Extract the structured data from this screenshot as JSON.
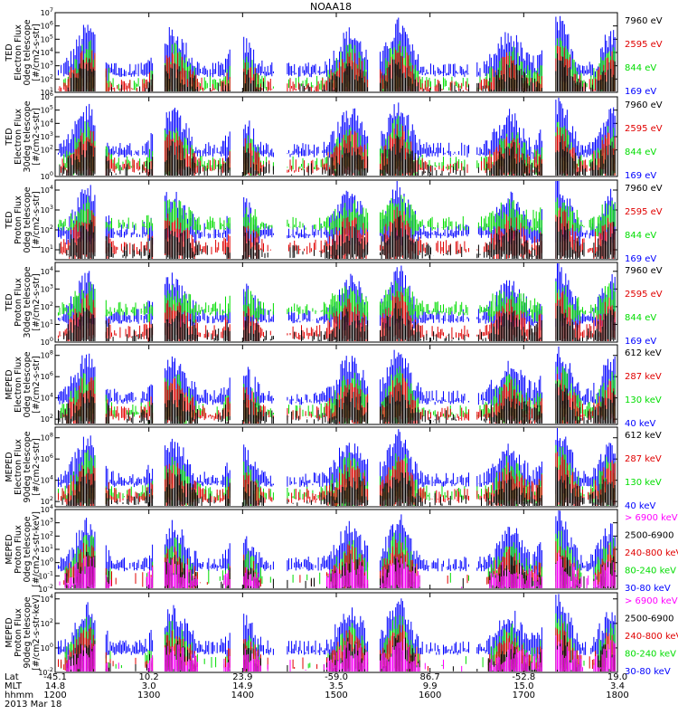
{
  "title": "NOAA18",
  "colors": {
    "black": "#000000",
    "red": "#e00000",
    "green": "#00dd00",
    "blue": "#0000ff",
    "magenta": "#ff00ff"
  },
  "chart_data": {
    "type": "scatter",
    "x_range_hhmm": [
      "1200",
      "1800"
    ],
    "grid": false,
    "panels": [
      {
        "ylabel_lines": [
          "TED",
          "Electron Flux",
          "0deg telescope",
          "[#/cm2-s-str]"
        ],
        "yticks": [
          1,
          2,
          3,
          4,
          5,
          6,
          7
        ],
        "ymin": 1,
        "ymax": 7,
        "baseline": 1.3,
        "legend": [
          {
            "label": "7960 eV",
            "color": "black"
          },
          {
            "label": "2595 eV",
            "color": "red"
          },
          {
            "label": "844 eV",
            "color": "green"
          },
          {
            "label": "169 eV",
            "color": "blue"
          }
        ]
      },
      {
        "ylabel_lines": [
          "TED",
          "Electron Flux",
          "30deg telescope",
          "[#/cm2-s-str]"
        ],
        "yticks": [
          0,
          2,
          3,
          4,
          5,
          6
        ],
        "ymin": 0,
        "ymax": 6,
        "baseline": 0.6,
        "legend": [
          {
            "label": "7960 eV",
            "color": "black"
          },
          {
            "label": "2595 eV",
            "color": "red"
          },
          {
            "label": "844 eV",
            "color": "green"
          },
          {
            "label": "169 eV",
            "color": "blue"
          }
        ]
      },
      {
        "ylabel_lines": [
          "TED",
          "Proton Flux",
          "0deg telescope",
          "[#/cm2-s-str]"
        ],
        "yticks": [
          1,
          2,
          3,
          4
        ],
        "ymin": 0.5,
        "ymax": 4.5,
        "baseline": 1.0,
        "legend": [
          {
            "label": "7960 eV",
            "color": "black"
          },
          {
            "label": "2595 eV",
            "color": "red"
          },
          {
            "label": "844 eV",
            "color": "green"
          },
          {
            "label": "169 eV",
            "color": "blue"
          }
        ]
      },
      {
        "ylabel_lines": [
          "TED",
          "Proton Flux",
          "30deg telescope",
          "[#/cm2-s-str]"
        ],
        "yticks": [
          0,
          1,
          2,
          3,
          4
        ],
        "ymin": 0,
        "ymax": 4.5,
        "baseline": 0.4,
        "legend": [
          {
            "label": "7960 eV",
            "color": "black"
          },
          {
            "label": "2595 eV",
            "color": "red"
          },
          {
            "label": "844 eV",
            "color": "green"
          },
          {
            "label": "169 eV",
            "color": "blue"
          }
        ]
      },
      {
        "ylabel_lines": [
          "MEPED",
          "Electron Flux",
          "0deg telescope",
          "[#/cm2-s-str]"
        ],
        "yticks": [
          2,
          4,
          6,
          8
        ],
        "ymin": 1.5,
        "ymax": 9,
        "baseline": 2.3,
        "legend": [
          {
            "label": "612 keV",
            "color": "black"
          },
          {
            "label": "287 keV",
            "color": "red"
          },
          {
            "label": "130 keV",
            "color": "green"
          },
          {
            "label": "40 keV",
            "color": "blue"
          }
        ]
      },
      {
        "ylabel_lines": [
          "MEPED",
          "Electron Flux",
          "90deg telescope",
          "[#/cm2-s-str]"
        ],
        "yticks": [
          2,
          4,
          6,
          8
        ],
        "ymin": 1.5,
        "ymax": 9,
        "baseline": 2.3,
        "legend": [
          {
            "label": "612 keV",
            "color": "black"
          },
          {
            "label": "287 keV",
            "color": "red"
          },
          {
            "label": "130 keV",
            "color": "green"
          },
          {
            "label": "40 keV",
            "color": "blue"
          }
        ]
      },
      {
        "ylabel_lines": [
          "MEPED",
          "Proton Flux",
          "0deg telescope",
          "[#/cm2-s-str-keV]"
        ],
        "yticks": [
          -2,
          -1,
          0,
          1,
          2,
          3,
          4
        ],
        "ymin": -2,
        "ymax": 4,
        "baseline": -1.5,
        "legend": [
          {
            "label": "> 6900 keV",
            "color": "magenta"
          },
          {
            "label": "2500-6900",
            "color": "black"
          },
          {
            "label": "240-800 keV",
            "color": "red"
          },
          {
            "label": "80-240 keV",
            "color": "green"
          },
          {
            "label": "30-80 keV",
            "color": "blue"
          }
        ]
      },
      {
        "ylabel_lines": [
          "MEPED",
          "Proton Flux",
          "90deg telescope",
          "[#/cm2-s-str-keV]"
        ],
        "yticks": [
          -2,
          0,
          2,
          4
        ],
        "ymin": -2,
        "ymax": 4.5,
        "baseline": -1.5,
        "legend": [
          {
            "label": "> 6900 keV",
            "color": "magenta"
          },
          {
            "label": "2500-6900",
            "color": "black"
          },
          {
            "label": "240-800 keV",
            "color": "red"
          },
          {
            "label": "80-240 keV",
            "color": "green"
          },
          {
            "label": "30-80 keV",
            "color": "blue"
          }
        ]
      }
    ],
    "x_axis": {
      "rows": [
        "Lat",
        "MLT",
        "hhmm",
        "2013 Mar 18"
      ],
      "ticks": [
        {
          "lat": "-45.1",
          "mlt": "14.8",
          "hhmm": "1200"
        },
        {
          "lat": "10.2",
          "mlt": "3.0",
          "hhmm": "1300"
        },
        {
          "lat": "23.9",
          "mlt": "14.9",
          "hhmm": "1400"
        },
        {
          "lat": "-59.0",
          "mlt": "3.5",
          "hhmm": "1500"
        },
        {
          "lat": "86.7",
          "mlt": "9.9",
          "hhmm": "1600"
        },
        {
          "lat": "-52.8",
          "mlt": "15.0",
          "hhmm": "1700"
        },
        {
          "lat": "19.0",
          "mlt": "3.4",
          "hhmm": "1800"
        }
      ]
    },
    "passes_hhmm": [
      {
        "center": "1221",
        "halfwidth_min": 12,
        "amp": 0.85
      },
      {
        "center": "1315",
        "halfwidth_min": 14,
        "amp": 0.75
      },
      {
        "center": "1400",
        "halfwidth_min": 11,
        "amp": 0.55
      },
      {
        "center": "1509",
        "halfwidth_min": 13,
        "amp": 0.75
      },
      {
        "center": "1540",
        "halfwidth_min": 11,
        "amp": 0.95
      },
      {
        "center": "1651",
        "halfwidth_min": 12,
        "amp": 0.7
      },
      {
        "center": "1722",
        "halfwidth_min": 12,
        "amp": 1.0
      },
      {
        "center": "1756",
        "halfwidth_min": 10,
        "amp": 0.75
      }
    ]
  }
}
